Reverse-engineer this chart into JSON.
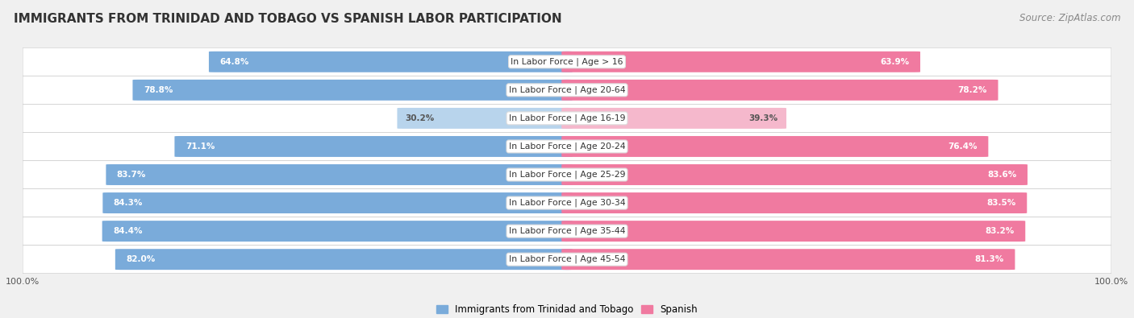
{
  "title": "IMMIGRANTS FROM TRINIDAD AND TOBAGO VS SPANISH LABOR PARTICIPATION",
  "source": "Source: ZipAtlas.com",
  "categories": [
    "In Labor Force | Age > 16",
    "In Labor Force | Age 20-64",
    "In Labor Force | Age 16-19",
    "In Labor Force | Age 20-24",
    "In Labor Force | Age 25-29",
    "In Labor Force | Age 30-34",
    "In Labor Force | Age 35-44",
    "In Labor Force | Age 45-54"
  ],
  "trinidad_values": [
    64.8,
    78.8,
    30.2,
    71.1,
    83.7,
    84.3,
    84.4,
    82.0
  ],
  "spanish_values": [
    63.9,
    78.2,
    39.3,
    76.4,
    83.6,
    83.5,
    83.2,
    81.3
  ],
  "trinidad_color_full": "#7aabda",
  "trinidad_color_light": "#b8d4ec",
  "spanish_color_full": "#f07aa0",
  "spanish_color_light": "#f5b8cc",
  "background_color": "#f0f0f0",
  "row_bg_color": "#ffffff",
  "row_alt_bg_color": "#f0f0f0",
  "max_value": 100.0,
  "figsize": [
    14.06,
    3.95
  ],
  "dpi": 100,
  "legend_label_trinidad": "Immigrants from Trinidad and Tobago",
  "legend_label_spanish": "Spanish",
  "threshold": 50.0
}
